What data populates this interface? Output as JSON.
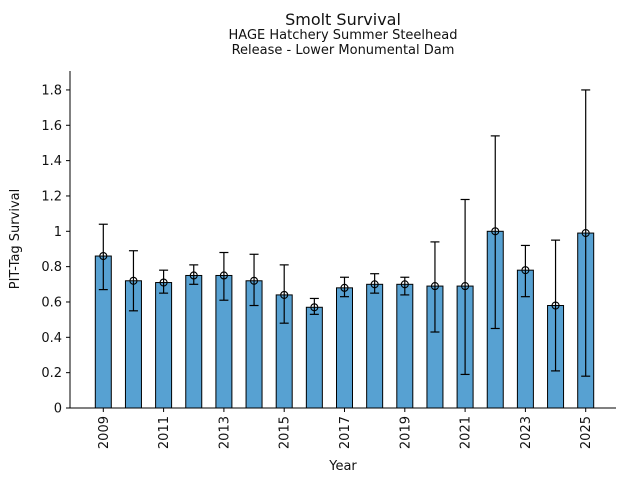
{
  "chart_data": {
    "type": "bar",
    "title": "Smolt Survival",
    "subtitle_lines": [
      "HAGE Hatchery Summer Steelhead",
      "Release - Lower Monumental Dam"
    ],
    "xlabel": "Year",
    "ylabel": "PIT-Tag Survival",
    "ylim": [
      0,
      1.9
    ],
    "grid": false,
    "legend_position": "none",
    "marker": "open-circle",
    "categories": [
      2009,
      2010,
      2011,
      2012,
      2013,
      2014,
      2015,
      2016,
      2017,
      2018,
      2019,
      2020,
      2021,
      2022,
      2023,
      2024,
      2025
    ],
    "series": [
      {
        "name": "PIT-Tag Survival",
        "values": [
          0.86,
          0.72,
          0.71,
          0.75,
          0.75,
          0.72,
          0.64,
          0.57,
          0.68,
          0.7,
          0.7,
          0.69,
          0.69,
          1.0,
          0.78,
          0.58,
          0.99
        ],
        "ci_low": [
          0.67,
          0.55,
          0.65,
          0.7,
          0.61,
          0.58,
          0.48,
          0.53,
          0.63,
          0.65,
          0.64,
          0.43,
          0.19,
          0.45,
          0.63,
          0.21,
          0.18
        ],
        "ci_high": [
          1.04,
          0.89,
          0.78,
          0.81,
          0.88,
          0.87,
          0.81,
          0.62,
          0.74,
          0.76,
          0.74,
          0.94,
          1.18,
          1.54,
          0.92,
          0.95,
          1.8
        ]
      }
    ],
    "yticks": {
      "values": [
        0,
        0.2,
        0.4,
        0.6,
        0.8,
        1.0,
        1.2,
        1.4,
        1.6,
        1.8
      ],
      "labels": [
        "0",
        "0.2",
        "0.4",
        "0.6",
        "0.8",
        "1",
        "1.2",
        "1.4",
        "1.6",
        "1.8"
      ]
    },
    "xticks": {
      "bar_indices": [
        0,
        2,
        4,
        6,
        8,
        10,
        12,
        14,
        16
      ],
      "labels": [
        "2009",
        "2011",
        "2013",
        "2015",
        "2017",
        "2019",
        "2021",
        "2023",
        "2025"
      ]
    },
    "colors": {
      "bar_fill": "#57A1D2",
      "bar_edge": "#000000",
      "error": "#000000",
      "axis": "#000000",
      "text": "#111111"
    }
  }
}
